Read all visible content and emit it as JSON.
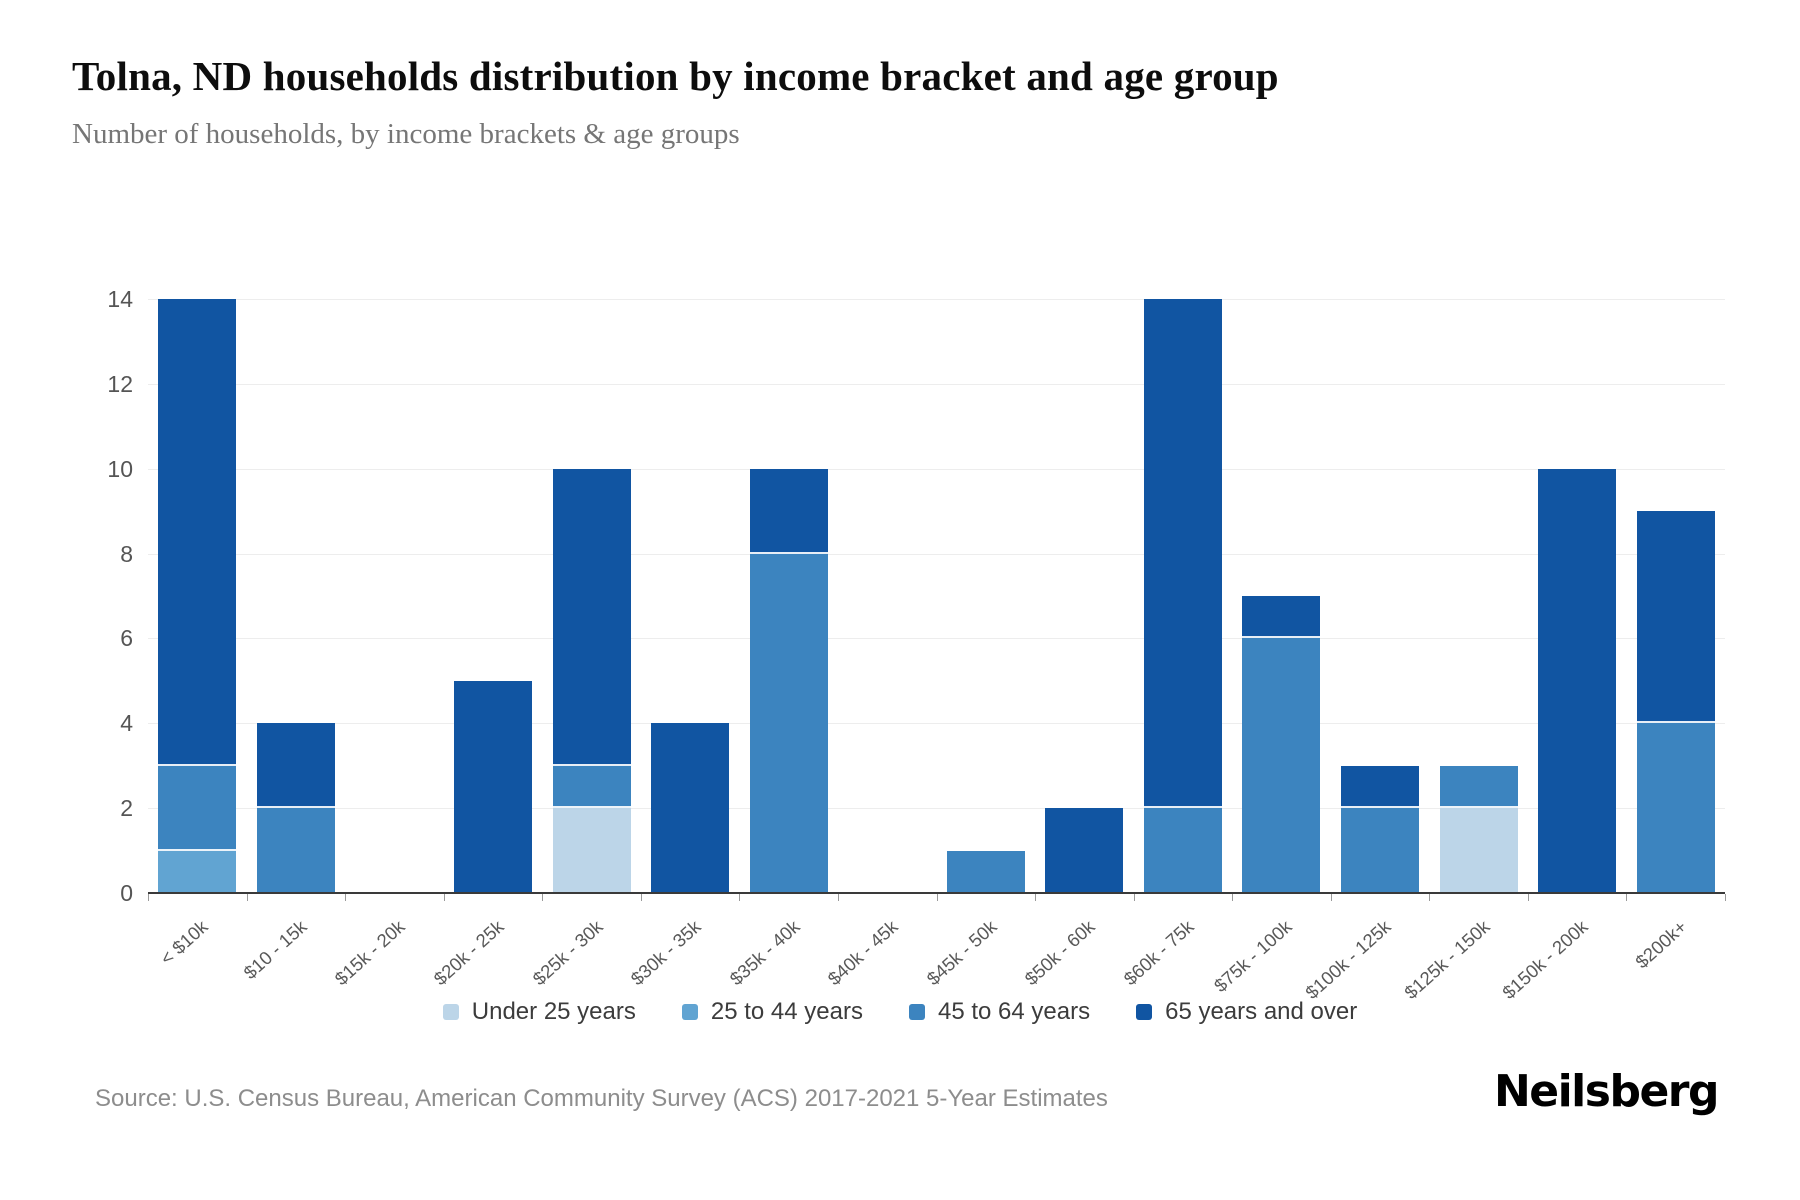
{
  "header": {
    "title": "Tolna, ND households distribution by income bracket and age group",
    "subtitle": "Number of households, by income brackets & age groups"
  },
  "chart_data": {
    "type": "bar",
    "stacked": true,
    "title": "Tolna, ND households distribution by income bracket and age group",
    "subtitle": "Number of households, by income brackets & age groups",
    "categories": [
      "< $10k",
      "$10 - 15k",
      "$15k - 20k",
      "$20k - 25k",
      "$25k - 30k",
      "$30k - 35k",
      "$35k - 40k",
      "$40k - 45k",
      "$45k - 50k",
      "$50k - 60k",
      "$60k - 75k",
      "$75k - 100k",
      "$100k - 125k",
      "$125k - 150k",
      "$150k - 200k",
      "$200k+"
    ],
    "series": [
      {
        "name": "Under 25 years",
        "color": "#bcd5e8",
        "values": [
          0,
          0,
          0,
          0,
          2,
          0,
          0,
          0,
          0,
          0,
          0,
          0,
          0,
          2,
          0,
          0
        ]
      },
      {
        "name": "25 to 44 years",
        "color": "#61a4d2",
        "values": [
          1,
          0,
          0,
          0,
          0,
          0,
          0,
          0,
          0,
          0,
          0,
          0,
          0,
          0,
          0,
          0
        ]
      },
      {
        "name": "45 to 64 years",
        "color": "#3c84bf",
        "values": [
          2,
          2,
          0,
          0,
          1,
          0,
          8,
          0,
          1,
          0,
          2,
          6,
          2,
          1,
          0,
          4
        ]
      },
      {
        "name": "65 years and over",
        "color": "#1155a2",
        "values": [
          11,
          2,
          0,
          5,
          7,
          4,
          2,
          0,
          0,
          2,
          12,
          1,
          1,
          0,
          10,
          5
        ]
      }
    ],
    "totals": [
      14,
      4,
      0,
      5,
      10,
      4,
      10,
      0,
      1,
      2,
      14,
      7,
      3,
      3,
      10,
      9
    ],
    "xlabel": "",
    "ylabel": "",
    "ylim": [
      0,
      14
    ],
    "yticks": [
      0,
      2,
      4,
      6,
      8,
      10,
      12,
      14
    ],
    "grid": true,
    "legend_position": "bottom"
  },
  "footer": {
    "source": "Source: U.S. Census Bureau, American Community Survey (ACS) 2017-2021 5-Year Estimates",
    "brand": "Neilsberg"
  }
}
